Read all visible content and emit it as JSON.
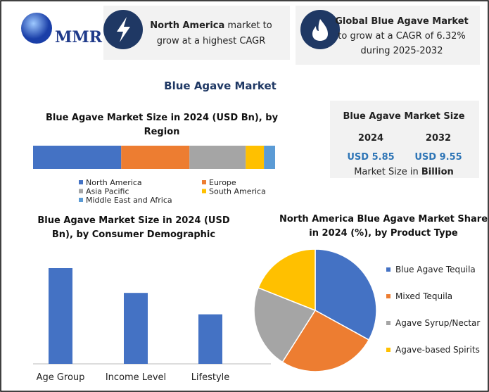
{
  "logo": "MMR",
  "highlights": [
    {
      "bold": "North America",
      "rest": [
        "market to",
        "grow at a highest CAGR"
      ]
    },
    {
      "bold": "Global Blue Agave Market",
      "rest": [
        "to grow at a CAGR of 6.32%",
        "during 2025-2032"
      ]
    }
  ],
  "title": "Blue Agave Market",
  "summary": {
    "title": "Blue Agave Market Size",
    "years": [
      "2024",
      "2032"
    ],
    "values": [
      "USD 5.85",
      "USD 9.55"
    ],
    "note": "Market Size in",
    "note_bold": "Billion"
  },
  "chart_data": [
    {
      "type": "bar",
      "horizontal": true,
      "stacked": true,
      "title": "Blue Agave Market Size  in 2024 (USD Bn), by Region",
      "categories": [
        null
      ],
      "series": [
        {
          "name": "North America",
          "color": "#4472c4",
          "values": [
            2.13
          ]
        },
        {
          "name": "Europe",
          "color": "#ed7d31",
          "values": [
            1.65
          ]
        },
        {
          "name": "Asia Pacific",
          "color": "#a5a5a5",
          "values": [
            1.36
          ]
        },
        {
          "name": "South America",
          "color": "#ffc000",
          "values": [
            0.44
          ]
        },
        {
          "name": "Middle East and Africa",
          "color": "#5b9bd5",
          "values": [
            0.27
          ]
        }
      ]
    },
    {
      "type": "bar",
      "title": "Blue Agave Market Size in 2024 (USD Bn), by Consumer Demographic",
      "categories": [
        "Age Group",
        "Income Level",
        "Lifestyle"
      ],
      "values": [
        2.59,
        1.92,
        1.34
      ],
      "color": "#4472c4"
    },
    {
      "type": "pie",
      "title": "North America Blue Agave Market Share in 2024 (%), by Product Type",
      "categories": [
        "Blue Agave Tequila",
        "Mixed Tequila",
        "Agave Syrup/Nectar",
        "Agave-based Spirits"
      ],
      "values": [
        33,
        26,
        22,
        19
      ],
      "colors": [
        "#4472c4",
        "#ed7d31",
        "#a5a5a5",
        "#ffc000"
      ],
      "legend": "right"
    }
  ]
}
